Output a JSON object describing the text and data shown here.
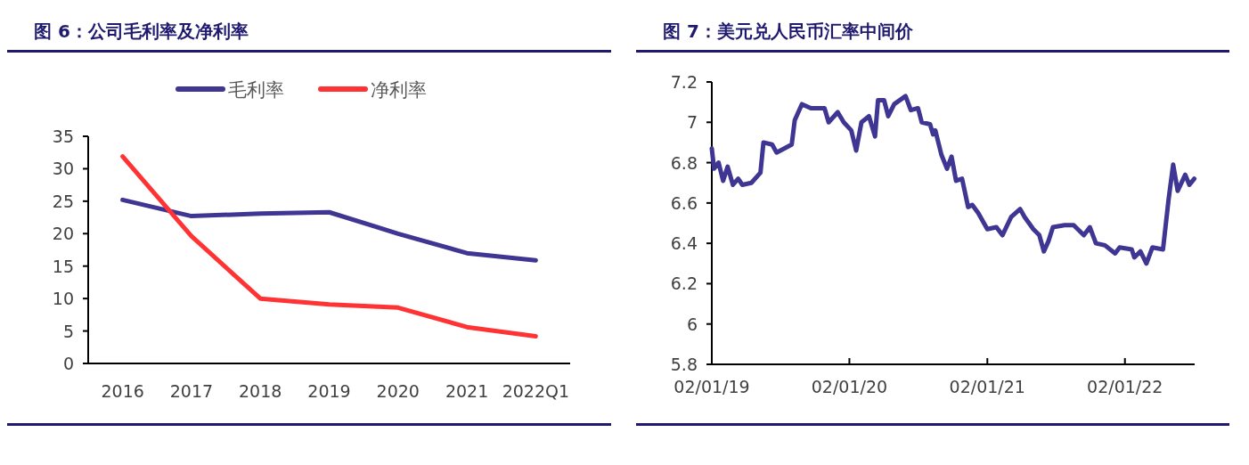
{
  "chart_data": [
    {
      "type": "line",
      "title": "图 6：公司毛利率及净利率",
      "categories": [
        "2016",
        "2017",
        "2018",
        "2019",
        "2020",
        "2021",
        "2022Q1"
      ],
      "legend": "top",
      "ylim": [
        0,
        35
      ],
      "yticks": [
        0,
        5,
        10,
        15,
        20,
        25,
        30,
        35
      ],
      "series": [
        {
          "name": "毛利率",
          "color": "#3f3694",
          "values": [
            25.2,
            22.7,
            23.1,
            23.3,
            20.0,
            17.0,
            15.9
          ]
        },
        {
          "name": "净利率",
          "color": "#ff3333",
          "values": [
            31.9,
            19.6,
            10.0,
            9.1,
            8.6,
            5.6,
            4.2
          ]
        }
      ]
    },
    {
      "type": "line",
      "title": "图 7：美元兑人民币汇率中间价",
      "color": "#3f3694",
      "xlim": [
        "2019-01-02",
        "2022-07-06"
      ],
      "xticks": [
        {
          "value": "2019-01-02",
          "label": "02/01/19"
        },
        {
          "value": "2020-01-02",
          "label": "02/01/20"
        },
        {
          "value": "2021-01-02",
          "label": "02/01/21"
        },
        {
          "value": "2022-01-02",
          "label": "02/01/22"
        }
      ],
      "ylim": [
        5.8,
        7.2
      ],
      "yticks": [
        5.8,
        6,
        6.2,
        6.4,
        6.6,
        6.8,
        7,
        7.2
      ],
      "x": [
        "2019-01-02",
        "2019-01-08",
        "2019-01-20",
        "2019-02-01",
        "2019-02-13",
        "2019-02-27",
        "2019-03-13",
        "2019-03-24",
        "2019-04-17",
        "2019-05-11",
        "2019-05-19",
        "2019-06-11",
        "2019-06-23",
        "2019-07-13",
        "2019-08-02",
        "2019-08-10",
        "2019-08-29",
        "2019-09-22",
        "2019-10-28",
        "2019-11-08",
        "2019-12-02",
        "2019-12-18",
        "2020-01-07",
        "2020-01-20",
        "2020-02-03",
        "2020-02-23",
        "2020-03-10",
        "2020-03-18",
        "2020-04-03",
        "2020-04-14",
        "2020-04-30",
        "2020-05-30",
        "2020-06-13",
        "2020-07-02",
        "2020-07-12",
        "2020-08-03",
        "2020-08-11",
        "2020-08-17",
        "2020-09-02",
        "2020-09-17",
        "2020-09-29",
        "2020-10-11",
        "2020-10-27",
        "2020-11-12",
        "2020-11-23",
        "2020-12-09",
        "2021-01-02",
        "2021-01-26",
        "2021-02-11",
        "2021-03-06",
        "2021-03-30",
        "2021-04-11",
        "2021-05-04",
        "2021-05-20",
        "2021-06-01",
        "2021-06-13",
        "2021-06-25",
        "2021-07-26",
        "2021-08-19",
        "2021-09-15",
        "2021-10-01",
        "2021-10-17",
        "2021-11-10",
        "2021-12-07",
        "2021-12-19",
        "2022-01-20",
        "2022-01-27",
        "2022-02-12",
        "2022-02-28",
        "2022-03-16",
        "2022-04-13",
        "2022-04-28",
        "2022-05-10",
        "2022-05-22",
        "2022-06-11",
        "2022-06-22",
        "2022-07-05"
      ],
      "values": [
        6.87,
        6.77,
        6.8,
        6.71,
        6.78,
        6.69,
        6.72,
        6.69,
        6.7,
        6.75,
        6.9,
        6.89,
        6.85,
        6.87,
        6.89,
        7.01,
        7.09,
        7.07,
        7.07,
        7.0,
        7.05,
        7.0,
        6.96,
        6.86,
        7.0,
        7.03,
        6.93,
        7.11,
        7.11,
        7.03,
        7.09,
        7.13,
        7.06,
        7.07,
        7.0,
        6.99,
        6.94,
        6.96,
        6.84,
        6.77,
        6.83,
        6.71,
        6.72,
        6.58,
        6.59,
        6.55,
        6.47,
        6.48,
        6.44,
        6.53,
        6.57,
        6.53,
        6.47,
        6.44,
        6.36,
        6.41,
        6.48,
        6.49,
        6.49,
        6.44,
        6.48,
        6.4,
        6.39,
        6.35,
        6.38,
        6.37,
        6.33,
        6.36,
        6.3,
        6.38,
        6.37,
        6.62,
        6.79,
        6.66,
        6.74,
        6.69,
        6.72
      ]
    }
  ]
}
